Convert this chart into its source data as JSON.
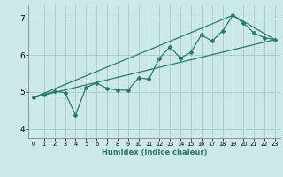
{
  "xlabel": "Humidex (Indice chaleur)",
  "xlim": [
    -0.5,
    23.5
  ],
  "ylim": [
    3.75,
    7.35
  ],
  "xticks": [
    0,
    1,
    2,
    3,
    4,
    5,
    6,
    7,
    8,
    9,
    10,
    11,
    12,
    13,
    14,
    15,
    16,
    17,
    18,
    19,
    20,
    21,
    22,
    23
  ],
  "yticks": [
    4,
    5,
    6,
    7
  ],
  "line_color": "#2a7a6a",
  "bg_color": "#cce8e8",
  "grid_color": "#aacece",
  "line1_x": [
    0,
    1,
    2,
    3,
    4,
    5,
    6,
    7,
    8,
    9,
    10,
    11,
    12,
    13,
    14,
    15,
    16,
    17,
    18,
    19,
    20,
    21,
    22,
    23
  ],
  "line1_y": [
    4.85,
    4.93,
    5.02,
    4.98,
    4.38,
    5.12,
    5.24,
    5.1,
    5.05,
    5.05,
    5.38,
    5.35,
    5.92,
    6.22,
    5.92,
    6.08,
    6.55,
    6.38,
    6.65,
    7.08,
    6.87,
    6.6,
    6.47,
    6.42
  ],
  "line2_x": [
    0,
    23
  ],
  "line2_y": [
    4.85,
    6.42
  ],
  "line3_x": [
    0,
    19,
    23
  ],
  "line3_y": [
    4.85,
    7.08,
    6.42
  ]
}
